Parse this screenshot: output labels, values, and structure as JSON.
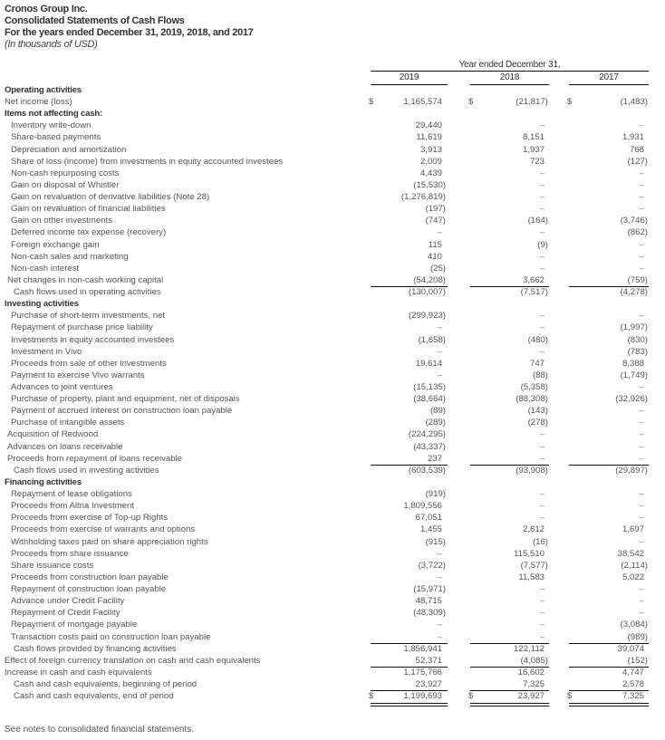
{
  "header": {
    "company": "Cronos Group Inc.",
    "statement": "Consolidated Statements of Cash Flows",
    "period": "For the years ended December 31, 2019, 2018, and 2017",
    "units": "(In thousands of USD)"
  },
  "columns": {
    "group_label": "Year ended December 31,",
    "years": [
      "2019",
      "2018",
      "2017"
    ],
    "currency_symbol": "$"
  },
  "rows": [
    {
      "label": "Operating activities",
      "type": "section",
      "indent": 0
    },
    {
      "label": "Net income (loss)",
      "indent": 0,
      "dollar": true,
      "values": [
        "1,165,574",
        "(21,817)",
        "(1,483)"
      ]
    },
    {
      "label": "Items not affecting cash:",
      "type": "section",
      "indent": 0
    },
    {
      "label": "Inventory write-down",
      "indent": 2,
      "values": [
        "29,440",
        "–",
        "–"
      ]
    },
    {
      "label": "Share-based payments",
      "indent": 2,
      "values": [
        "11,619",
        "8,151",
        "1,931"
      ]
    },
    {
      "label": "Depreciation and amortization",
      "indent": 2,
      "values": [
        "3,913",
        "1,937",
        "768"
      ]
    },
    {
      "label": "Share of loss (income) from investments in equity accounted investees",
      "indent": 2,
      "values": [
        "2,009",
        "723",
        "(127)"
      ]
    },
    {
      "label": "Non-cash repurposing costs",
      "indent": 2,
      "values": [
        "4,439",
        "–",
        "–"
      ]
    },
    {
      "label": "Gain on disposal of Whistler",
      "indent": 2,
      "values": [
        "(15,530)",
        "–",
        "–"
      ]
    },
    {
      "label": "Gain on revaluation of derivative liabilities (Note 28)",
      "indent": 2,
      "values": [
        "(1,276,819)",
        "–",
        "–"
      ]
    },
    {
      "label": "Gain on revaluation of financial liabilities",
      "indent": 2,
      "values": [
        "(197)",
        "–",
        "–"
      ]
    },
    {
      "label": "Gain on other investments",
      "indent": 2,
      "values": [
        "(747)",
        "(164)",
        "(3,746)"
      ]
    },
    {
      "label": "Deferred income tax expense (recovery)",
      "indent": 2,
      "values": [
        "–",
        "–",
        "(862)"
      ]
    },
    {
      "label": "Foreign exchange gain",
      "indent": 2,
      "values": [
        "115",
        "(9)",
        "–"
      ]
    },
    {
      "label": "Non-cash sales and marketing",
      "indent": 2,
      "values": [
        "410",
        "–",
        "–"
      ]
    },
    {
      "label": "Non-cash interest",
      "indent": 2,
      "values": [
        "(25)",
        "–",
        "–"
      ]
    },
    {
      "label": "Net changes in non-cash working capital",
      "indent": 1,
      "values": [
        "(54,208)",
        "3,662",
        "(759)"
      ]
    },
    {
      "label": "Cash flows used in operating activities",
      "type": "total",
      "indent": 3,
      "values": [
        "(130,007)",
        "(7,517)",
        "(4,278)"
      ]
    },
    {
      "label": "Investing activities",
      "type": "section",
      "indent": 0
    },
    {
      "label": "Purchase of short-term investments, net",
      "indent": 2,
      "values": [
        "(299,923)",
        "–",
        "–"
      ]
    },
    {
      "label": "Repayment of purchase price liability",
      "indent": 2,
      "values": [
        "–",
        "–",
        "(1,997)"
      ]
    },
    {
      "label": "Investments in equity accounted investees",
      "indent": 2,
      "values": [
        "(1,658)",
        "(480)",
        "(830)"
      ]
    },
    {
      "label": "Investment in Vivo",
      "indent": 2,
      "values": [
        "–",
        "–",
        "(783)"
      ]
    },
    {
      "label": "Proceeds from sale of other investments",
      "indent": 2,
      "values": [
        "19,614",
        "747",
        "8,388"
      ]
    },
    {
      "label": "Payment to exercise Vivo warrants",
      "indent": 2,
      "values": [
        "–",
        "(88)",
        "(1,749)"
      ]
    },
    {
      "label": "Advances to joint ventures",
      "indent": 2,
      "values": [
        "(15,135)",
        "(5,358)",
        "–"
      ]
    },
    {
      "label": "Purchase of property, plant and equipment, net of disposals",
      "indent": 2,
      "values": [
        "(38,664)",
        "(88,308)",
        "(32,926)"
      ]
    },
    {
      "label": "Payment of accrued interest on construction loan payable",
      "indent": 2,
      "values": [
        "(89)",
        "(143)",
        "–"
      ]
    },
    {
      "label": "Purchase of intangible assets",
      "indent": 2,
      "values": [
        "(289)",
        "(278)",
        "–"
      ]
    },
    {
      "label": "Acquisition of Redwood",
      "indent": 1,
      "values": [
        "(224,295)",
        "–",
        "–"
      ]
    },
    {
      "label": "Advances on loans receivable",
      "indent": 1,
      "values": [
        "(43,337)",
        "–",
        "–"
      ]
    },
    {
      "label": "Proceeds from repayment of loans receivable",
      "indent": 1,
      "values": [
        "237",
        "–",
        "–"
      ]
    },
    {
      "label": "Cash flows used in investing activities",
      "type": "total",
      "indent": 3,
      "values": [
        "(603,539)",
        "(93,908)",
        "(29,897)"
      ]
    },
    {
      "label": "Financing activities",
      "type": "section",
      "indent": 0
    },
    {
      "label": "Repayment of lease obligations",
      "indent": 2,
      "values": [
        "(919)",
        "–",
        "–"
      ]
    },
    {
      "label": "Proceeds from Altria Investment",
      "indent": 2,
      "values": [
        "1,809,556",
        "–",
        "–"
      ]
    },
    {
      "label": "Proceeds from exercise of Top-up Rights",
      "indent": 2,
      "values": [
        "67,051",
        "–",
        "–"
      ]
    },
    {
      "label": "Proceeds from exercise of warrants and options",
      "indent": 2,
      "values": [
        "1,455",
        "2,612",
        "1,697"
      ]
    },
    {
      "label": "Withholding taxes paid on share appreciation rights",
      "indent": 2,
      "values": [
        "(915)",
        "(16)",
        "–"
      ]
    },
    {
      "label": "Proceeds from share issuance",
      "indent": 2,
      "values": [
        "–",
        "115,510",
        "38,542"
      ]
    },
    {
      "label": "Share issuance costs",
      "indent": 2,
      "values": [
        "(3,722)",
        "(7,577)",
        "(2,114)"
      ]
    },
    {
      "label": "Proceeds from construction loan payable",
      "indent": 2,
      "values": [
        "–",
        "11,583",
        "5,022"
      ]
    },
    {
      "label": "Repayment of construction loan payable",
      "indent": 2,
      "values": [
        "(15,971)",
        "–",
        "–"
      ]
    },
    {
      "label": "Advance under Credit Facility",
      "indent": 2,
      "values": [
        "48,715",
        "–",
        "–"
      ]
    },
    {
      "label": "Repayment of Credit Facility",
      "indent": 2,
      "values": [
        "(48,309)",
        "–",
        "–"
      ]
    },
    {
      "label": "Repayment of mortgage payable",
      "indent": 2,
      "values": [
        "–",
        "–",
        "(3,084)"
      ]
    },
    {
      "label": "Transaction costs paid on construction loan payable",
      "indent": 2,
      "values": [
        "–",
        "–",
        "(989)"
      ]
    },
    {
      "label": "Cash flows provided by financing activities",
      "type": "total",
      "indent": 3,
      "values": [
        "1,856,941",
        "122,112",
        "39,074"
      ]
    },
    {
      "label": "Effect of foreign currency translation on cash and cash equivalents",
      "indent": 0,
      "values": [
        "52,371",
        "(4,085)",
        "(152)"
      ]
    },
    {
      "label": "Increase in cash and cash equivalents",
      "type": "total",
      "indent": 0,
      "values": [
        "1,175,766",
        "16,602",
        "4,747"
      ]
    },
    {
      "label": "Cash and cash equivalents, beginning of period",
      "indent": 3,
      "values": [
        "23,927",
        "7,325",
        "2,578"
      ]
    },
    {
      "label": "Cash and cash equivalents, end of period",
      "type": "grand_total",
      "indent": 3,
      "dollar": true,
      "values": [
        "1,199,693",
        "23,927",
        "7,325"
      ]
    }
  ],
  "footer": {
    "note": "See notes to consolidated financial statements."
  }
}
